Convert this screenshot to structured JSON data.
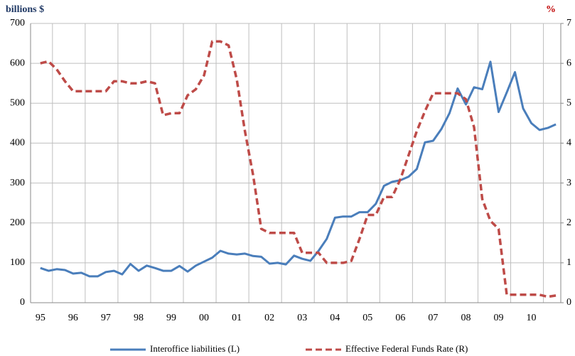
{
  "chart_data": {
    "type": "line",
    "y_label": "billions $",
    "y2_label": "%",
    "x": [
      1995,
      1995.25,
      1995.5,
      1995.75,
      1996,
      1996.25,
      1996.5,
      1996.75,
      1997,
      1997.25,
      1997.5,
      1997.75,
      1998,
      1998.25,
      1998.5,
      1998.75,
      1999,
      1999.25,
      1999.5,
      1999.75,
      2000,
      2000.25,
      2000.5,
      2000.75,
      2001,
      2001.25,
      2001.5,
      2001.75,
      2002,
      2002.25,
      2002.5,
      2002.75,
      2003,
      2003.25,
      2003.5,
      2003.75,
      2004,
      2004.25,
      2004.5,
      2004.75,
      2005,
      2005.25,
      2005.5,
      2005.75,
      2006,
      2006.25,
      2006.5,
      2006.75,
      2007,
      2007.25,
      2007.5,
      2007.75,
      2008,
      2008.25,
      2008.5,
      2008.75,
      2009,
      2009.25,
      2009.5,
      2009.75,
      2010,
      2010.25,
      2010.5,
      2010.75
    ],
    "series": [
      {
        "name": "Interoffice liabilities (L)",
        "color": "#4a7ebb",
        "axis": "y",
        "dash": false,
        "values": [
          87,
          80,
          84,
          82,
          73,
          75,
          66,
          66,
          77,
          80,
          71,
          97,
          80,
          93,
          87,
          80,
          80,
          92,
          78,
          93,
          103,
          113,
          130,
          123,
          121,
          123,
          117,
          115,
          98,
          100,
          96,
          118,
          110,
          105,
          130,
          160,
          213,
          216,
          216,
          227,
          227,
          248,
          293,
          303,
          307,
          316,
          335,
          402,
          406,
          435,
          475,
          537,
          497,
          540,
          535,
          604,
          478,
          527,
          578,
          487,
          450,
          433,
          438,
          447
        ]
      },
      {
        "name": "Effective Federal Funds Rate (R)",
        "color": "#be4b48",
        "axis": "y2",
        "dash": true,
        "values": [
          6.0,
          6.05,
          5.85,
          5.55,
          5.3,
          5.3,
          5.3,
          5.3,
          5.3,
          5.55,
          5.55,
          5.5,
          5.5,
          5.55,
          5.5,
          4.7,
          4.75,
          4.75,
          5.2,
          5.35,
          5.7,
          6.55,
          6.55,
          6.45,
          5.6,
          4.3,
          3.2,
          1.85,
          1.75,
          1.75,
          1.75,
          1.75,
          1.25,
          1.25,
          1.25,
          1.0,
          1.0,
          1.0,
          1.05,
          1.6,
          2.2,
          2.2,
          2.65,
          2.65,
          3.1,
          3.7,
          4.3,
          4.8,
          5.25,
          5.25,
          5.25,
          5.25,
          5.1,
          4.4,
          2.6,
          2.05,
          1.85,
          0.2,
          0.2,
          0.2,
          0.2,
          0.2,
          0.15,
          0.18
        ]
      }
    ],
    "xlim": [
      1994.7,
      2010.9
    ],
    "xticks": [
      {
        "value": 1995,
        "label": "95"
      },
      {
        "value": 1996,
        "label": "96"
      },
      {
        "value": 1997,
        "label": "97"
      },
      {
        "value": 1998,
        "label": "98"
      },
      {
        "value": 1999,
        "label": "99"
      },
      {
        "value": 2000,
        "label": "00"
      },
      {
        "value": 2001,
        "label": "01"
      },
      {
        "value": 2002,
        "label": "02"
      },
      {
        "value": 2003,
        "label": "03"
      },
      {
        "value": 2004,
        "label": "04"
      },
      {
        "value": 2005,
        "label": "05"
      },
      {
        "value": 2006,
        "label": "06"
      },
      {
        "value": 2007,
        "label": "07"
      },
      {
        "value": 2008,
        "label": "08"
      },
      {
        "value": 2009,
        "label": "09"
      },
      {
        "value": 2010,
        "label": "10"
      }
    ],
    "ylim": [
      0,
      700
    ],
    "yticks": [
      0,
      100,
      200,
      300,
      400,
      500,
      600,
      700
    ],
    "y2lim": [
      0,
      7
    ],
    "y2ticks": [
      0,
      1,
      2,
      3,
      4,
      5,
      6,
      7
    ],
    "grid": true
  }
}
